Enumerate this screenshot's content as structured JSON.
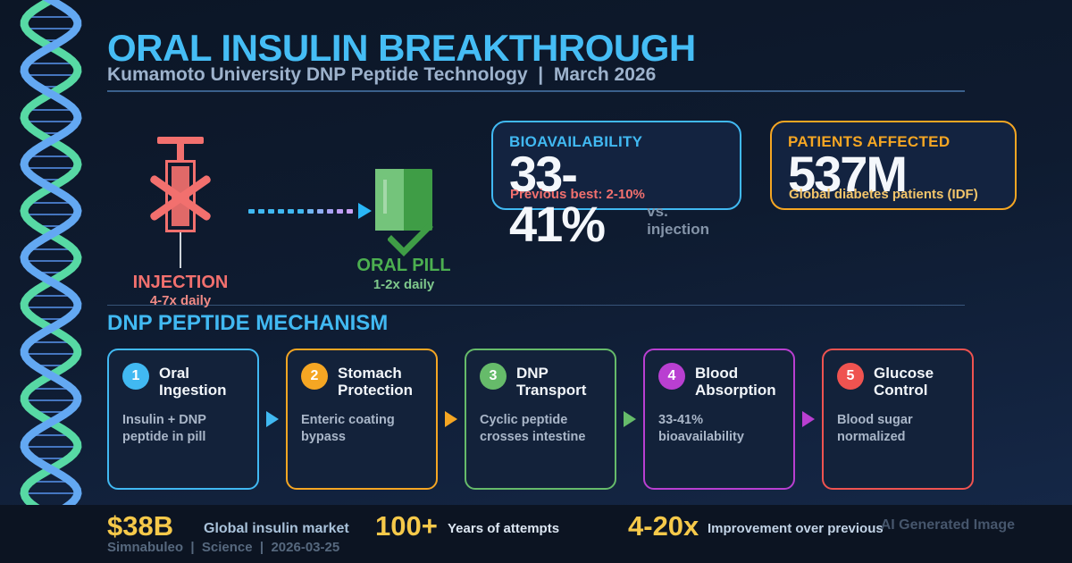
{
  "header": {
    "title": "ORAL INSULIN BREAKTHROUGH",
    "subtitle": "Kumamoto University DNP Peptide Technology  |  March 2026"
  },
  "comparison": {
    "injection": {
      "label": "INJECTION",
      "frequency": "4-7x daily",
      "accent": "#f2706e"
    },
    "oral_pill": {
      "label": "ORAL PILL",
      "frequency": "1-2x daily",
      "accent": "#4caf50"
    }
  },
  "stat_cards": [
    {
      "title": "BIOAVAILABILITY",
      "value": "33-41%",
      "suffix": "vs. injection",
      "note": "Previous best: 2-10%",
      "accent": "#41b9f2",
      "note_color": "#f2706e"
    },
    {
      "title": "PATIENTS AFFECTED",
      "value": "537M",
      "suffix": "",
      "note": "Global diabetes patients (IDF)",
      "accent": "#f5a623",
      "note_color": "#f3c56a"
    }
  ],
  "mechanism": {
    "heading": "DNP PEPTIDE MECHANISM",
    "steps": [
      {
        "number": "1",
        "title": "Oral Ingestion",
        "description": "Insulin + DNP peptide in pill",
        "accent": "#41b9f2"
      },
      {
        "number": "2",
        "title": "Stomach Protection",
        "description": "Enteric coating bypass",
        "accent": "#f5a623"
      },
      {
        "number": "3",
        "title": "DNP Transport",
        "description": "Cyclic peptide crosses intestine",
        "accent": "#66bb6a"
      },
      {
        "number": "4",
        "title": "Blood Absorption",
        "description": "33-41% bioavailability",
        "accent": "#b93fd1"
      },
      {
        "number": "5",
        "title": "Glucose Control",
        "description": "Blood sugar normalized",
        "accent": "#ef5350"
      }
    ]
  },
  "footer": {
    "stats": [
      {
        "value": "$38B",
        "label": "Global insulin market"
      },
      {
        "value": "100+",
        "label": "Years of attempts"
      },
      {
        "value": "4-20x",
        "label": "Improvement over previous"
      }
    ],
    "source": "Simnabuleo  |  Science  |  2026-03-25",
    "watermark": "AI Generated Image",
    "accent_yellow": "#f6c94a"
  }
}
